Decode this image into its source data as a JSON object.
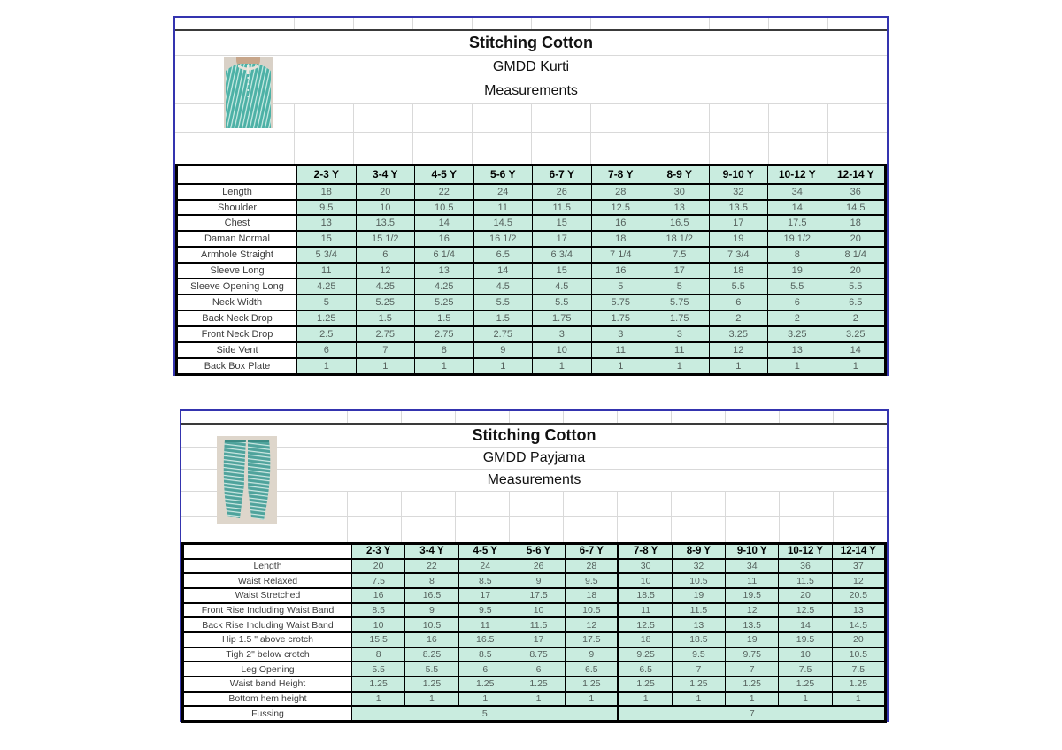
{
  "columns": [
    "2-3 Y",
    "3-4 Y",
    "4-5 Y",
    "5-6 Y",
    "6-7 Y",
    "7-8 Y",
    "8-9 Y",
    "9-10 Y",
    "10-12 Y",
    "12-14 Y"
  ],
  "colors": {
    "page_border_blue": "#3434af",
    "cell_teal": "#c9ecdf",
    "gridline_gray": "#d9d9d9",
    "table_border": "#000000",
    "garment_teal": "#4db1a6"
  },
  "tables": [
    {
      "title": "Stitching Cotton",
      "subtitle": "GMDD Kurti",
      "subtitle2": "Measurements",
      "photo": "kurti-photo",
      "rows": [
        {
          "label": "Length",
          "values": [
            "18",
            "20",
            "22",
            "24",
            "26",
            "28",
            "30",
            "32",
            "34",
            "36"
          ]
        },
        {
          "label": "Shoulder",
          "values": [
            "9.5",
            "10",
            "10.5",
            "11",
            "11.5",
            "12.5",
            "13",
            "13.5",
            "14",
            "14.5"
          ]
        },
        {
          "label": "Chest",
          "values": [
            "13",
            "13.5",
            "14",
            "14.5",
            "15",
            "16",
            "16.5",
            "17",
            "17.5",
            "18"
          ]
        },
        {
          "label": "Daman Normal",
          "values": [
            "15",
            "15 1/2",
            "16",
            "16 1/2",
            "17",
            "18",
            "18 1/2",
            "19",
            "19 1/2",
            "20"
          ]
        },
        {
          "label": "Armhole Straight",
          "values": [
            "5 3/4",
            "6",
            "6 1/4",
            "6.5",
            "6 3/4",
            "7 1/4",
            "7.5",
            "7 3/4",
            "8",
            "8 1/4"
          ]
        },
        {
          "label": "Sleeve Long",
          "values": [
            "11",
            "12",
            "13",
            "14",
            "15",
            "16",
            "17",
            "18",
            "19",
            "20"
          ]
        },
        {
          "label": "Sleeve Opening Long",
          "values": [
            "4.25",
            "4.25",
            "4.25",
            "4.5",
            "4.5",
            "5",
            "5",
            "5.5",
            "5.5",
            "5.5"
          ]
        },
        {
          "label": "Neck Width",
          "values": [
            "5",
            "5.25",
            "5.25",
            "5.5",
            "5.5",
            "5.75",
            "5.75",
            "6",
            "6",
            "6.5"
          ]
        },
        {
          "label": "Back Neck Drop",
          "values": [
            "1.25",
            "1.5",
            "1.5",
            "1.5",
            "1.75",
            "1.75",
            "1.75",
            "2",
            "2",
            "2"
          ]
        },
        {
          "label": "Front Neck Drop",
          "values": [
            "2.5",
            "2.75",
            "2.75",
            "2.75",
            "3",
            "3",
            "3",
            "3.25",
            "3.25",
            "3.25"
          ]
        },
        {
          "label": "Side Vent",
          "values": [
            "6",
            "7",
            "8",
            "9",
            "10",
            "11",
            "11",
            "12",
            "13",
            "14"
          ]
        },
        {
          "label": "Back Box Plate",
          "values": [
            "1",
            "1",
            "1",
            "1",
            "1",
            "1",
            "1",
            "1",
            "1",
            "1"
          ]
        }
      ]
    },
    {
      "title": "Stitching Cotton",
      "subtitle": "GMDD Payjama",
      "subtitle2": "Measurements",
      "photo": "payjama-photo",
      "heavy_divider_at_column": 5,
      "rows": [
        {
          "label": "Length",
          "values": [
            "20",
            "22",
            "24",
            "26",
            "28",
            "30",
            "32",
            "34",
            "36",
            "37"
          ]
        },
        {
          "label": "Waist Relaxed",
          "values": [
            "7.5",
            "8",
            "8.5",
            "9",
            "9.5",
            "10",
            "10.5",
            "11",
            "11.5",
            "12"
          ]
        },
        {
          "label": "Waist Stretched",
          "values": [
            "16",
            "16.5",
            "17",
            "17.5",
            "18",
            "18.5",
            "19",
            "19.5",
            "20",
            "20.5"
          ]
        },
        {
          "label": "Front Rise Including Waist Band",
          "values": [
            "8.5",
            "9",
            "9.5",
            "10",
            "10.5",
            "11",
            "11.5",
            "12",
            "12.5",
            "13"
          ]
        },
        {
          "label": "Back Rise Including Waist Band",
          "values": [
            "10",
            "10.5",
            "11",
            "11.5",
            "12",
            "12.5",
            "13",
            "13.5",
            "14",
            "14.5"
          ]
        },
        {
          "label": "Hip 1.5 \" above crotch",
          "values": [
            "15.5",
            "16",
            "16.5",
            "17",
            "17.5",
            "18",
            "18.5",
            "19",
            "19.5",
            "20"
          ]
        },
        {
          "label": "Tigh 2\" below crotch",
          "values": [
            "8",
            "8.25",
            "8.5",
            "8.75",
            "9",
            "9.25",
            "9.5",
            "9.75",
            "10",
            "10.5"
          ]
        },
        {
          "label": "Leg Opening",
          "values": [
            "5.5",
            "5.5",
            "6",
            "6",
            "6.5",
            "6.5",
            "7",
            "7",
            "7.5",
            "7.5"
          ]
        },
        {
          "label": "Waist band Height",
          "values": [
            "1.25",
            "1.25",
            "1.25",
            "1.25",
            "1.25",
            "1.25",
            "1.25",
            "1.25",
            "1.25",
            "1.25"
          ]
        },
        {
          "label": "Bottom hem height",
          "values": [
            "1",
            "1",
            "1",
            "1",
            "1",
            "1",
            "1",
            "1",
            "1",
            "1"
          ]
        },
        {
          "label": "Fussing",
          "merged": [
            {
              "value": "5",
              "span": 5
            },
            {
              "value": "7",
              "span": 5
            }
          ]
        }
      ]
    }
  ]
}
